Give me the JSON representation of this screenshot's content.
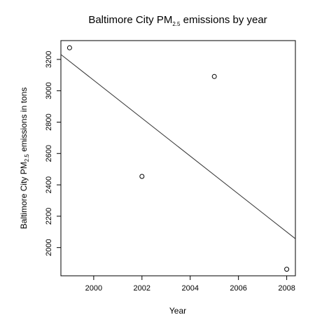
{
  "chart_data": {
    "type": "scatter",
    "title": {
      "pre": "Baltimore City PM",
      "sub": "2.5",
      "post": " emissions by year"
    },
    "xlabel": "Year",
    "ylabel": {
      "pre": "Baltimore City PM",
      "sub": "2.5",
      "post": " emissions in tons"
    },
    "xlim": [
      1998.64,
      2008.36
    ],
    "ylim": [
      1820,
      3320
    ],
    "x_ticks": [
      2000,
      2002,
      2004,
      2006,
      2008
    ],
    "y_ticks": [
      2000,
      2200,
      2400,
      2600,
      2800,
      3000,
      3200
    ],
    "points": [
      {
        "x": 1999,
        "y": 3274
      },
      {
        "x": 2002,
        "y": 2454
      },
      {
        "x": 2005,
        "y": 3091
      },
      {
        "x": 2008,
        "y": 1862
      }
    ],
    "trend_line": {
      "intercept_at_1999": 3187.9,
      "slope_per_year": -120.9
    },
    "grid": false,
    "legend": "none"
  }
}
